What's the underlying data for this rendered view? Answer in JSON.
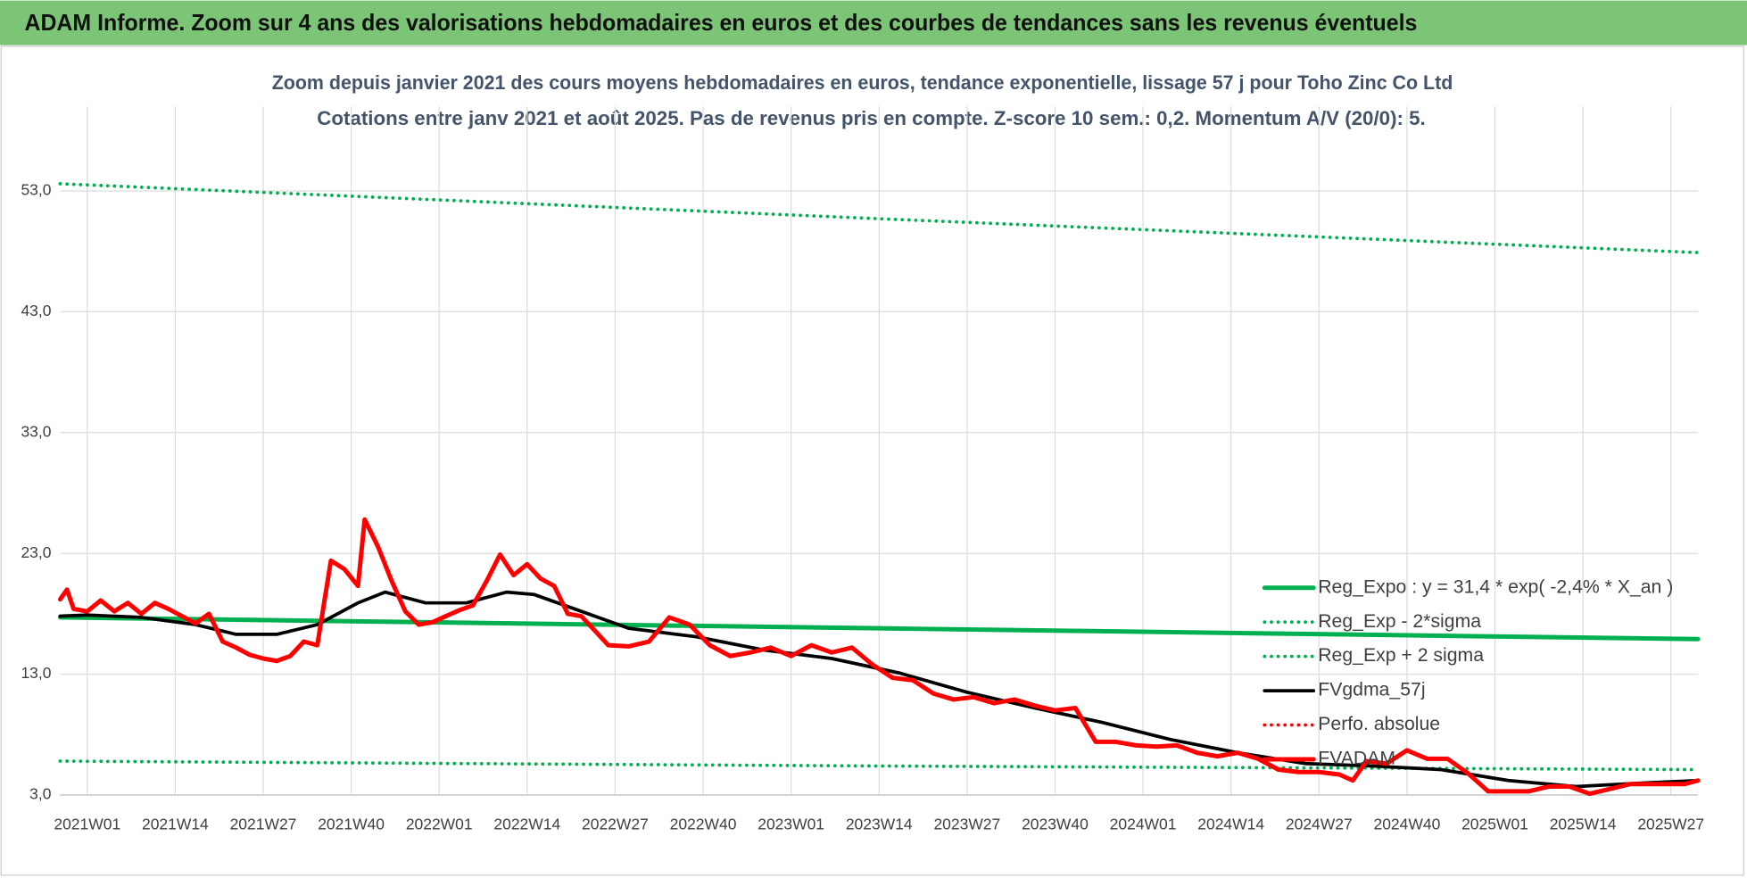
{
  "header": {
    "title": "ADAM Informe. Zoom sur 4 ans des valorisations hebdomadaires en euros et des courbes de tendances sans les revenus éventuels"
  },
  "chart_data": {
    "type": "line",
    "title": "Zoom depuis janvier 2021 des cours moyens hebdomadaires en euros, tendance exponentielle, lissage 57 j pour Toho Zinc Co Ltd",
    "subtitle": "Cotations entre janv 2021 et août 2025.  Pas de revenus pris en compte. Z-score 10 sem.: 0,2. Momentum A/V (20/0): 5.",
    "xlim": [
      -4,
      238
    ],
    "xticks": [
      {
        "value": 0,
        "label": "2021W01"
      },
      {
        "value": 13,
        "label": "2021W14"
      },
      {
        "value": 26,
        "label": "2021W27"
      },
      {
        "value": 39,
        "label": "2021W40"
      },
      {
        "value": 52,
        "label": "2022W01"
      },
      {
        "value": 65,
        "label": "2022W14"
      },
      {
        "value": 78,
        "label": "2022W27"
      },
      {
        "value": 91,
        "label": "2022W40"
      },
      {
        "value": 104,
        "label": "2023W01"
      },
      {
        "value": 117,
        "label": "2023W14"
      },
      {
        "value": 130,
        "label": "2023W27"
      },
      {
        "value": 143,
        "label": "2023W40"
      },
      {
        "value": 156,
        "label": "2024W01"
      },
      {
        "value": 169,
        "label": "2024W14"
      },
      {
        "value": 182,
        "label": "2024W27"
      },
      {
        "value": 195,
        "label": "2024W40"
      },
      {
        "value": 208,
        "label": "2025W01"
      },
      {
        "value": 221,
        "label": "2025W14"
      },
      {
        "value": 234,
        "label": "2025W27"
      }
    ],
    "ylim": [
      3,
      60
    ],
    "yticks": [
      {
        "value": 3,
        "label": "3,0"
      },
      {
        "value": 13,
        "label": "13,0"
      },
      {
        "value": 23,
        "label": "23,0"
      },
      {
        "value": 33,
        "label": "33,0"
      },
      {
        "value": 43,
        "label": "43,0"
      },
      {
        "value": 53,
        "label": "53,0"
      }
    ],
    "grid": true,
    "legend": "right",
    "series": [
      {
        "name": "Reg_Expo : y = 31,4 * exp( -2,4% *  X_an )",
        "color": "#00b050",
        "dash": "solid",
        "width": 4,
        "x": [
          -4,
          117,
          238
        ],
        "values": [
          17.7,
          16.8,
          15.9
        ]
      },
      {
        "name": "Reg_Exp - 2*sigma",
        "color": "#00b050",
        "dash": "dotted",
        "width": 3,
        "x": [
          -4,
          117,
          238
        ],
        "values": [
          5.8,
          5.4,
          5.1
        ]
      },
      {
        "name": "Reg_Exp + 2 sigma",
        "color": "#00b050",
        "dash": "dotted",
        "width": 3,
        "x": [
          -4,
          117,
          238
        ],
        "values": [
          53.6,
          50.7,
          47.9
        ]
      },
      {
        "name": "FVgdma_57j",
        "color": "#000000",
        "dash": "solid",
        "width": 3,
        "x": [
          -4,
          0,
          8,
          16,
          22,
          28,
          34,
          40,
          44,
          50,
          56,
          62,
          66,
          72,
          80,
          90,
          100,
          110,
          120,
          130,
          140,
          150,
          160,
          170,
          180,
          190,
          200,
          210,
          220,
          230,
          238
        ],
        "values": [
          17.8,
          17.9,
          17.7,
          17.1,
          16.3,
          16.3,
          17.1,
          18.9,
          19.8,
          18.9,
          18.9,
          19.8,
          19.6,
          18.4,
          16.8,
          16.1,
          15.0,
          14.3,
          13.1,
          11.5,
          10.2,
          9.0,
          7.6,
          6.5,
          5.6,
          5.4,
          5.1,
          4.2,
          3.7,
          4.0,
          4.2
        ]
      },
      {
        "name": "Perfo. absolue",
        "color": "#ff0000",
        "dash": "dotted",
        "width": 3,
        "x": [],
        "values": []
      },
      {
        "name": "FVADAM",
        "color": "#ff0000",
        "dash": "solid",
        "width": 4,
        "x": [
          -4,
          -3,
          -2,
          0,
          2,
          4,
          6,
          8,
          10,
          12,
          14,
          16,
          18,
          20,
          22,
          24,
          26,
          28,
          30,
          32,
          34,
          36,
          38,
          40,
          41,
          43,
          45,
          47,
          49,
          51,
          53,
          55,
          57,
          59,
          61,
          63,
          65,
          67,
          69,
          71,
          73,
          75,
          77,
          80,
          83,
          86,
          89,
          92,
          95,
          98,
          101,
          104,
          107,
          110,
          113,
          116,
          119,
          122,
          125,
          128,
          131,
          134,
          137,
          140,
          143,
          146,
          149,
          152,
          155,
          158,
          161,
          164,
          167,
          170,
          173,
          176,
          179,
          182,
          185,
          187,
          189,
          192,
          195,
          198,
          201,
          204,
          207,
          210,
          213,
          216,
          219,
          222,
          225,
          228,
          231,
          234,
          236,
          238
        ],
        "values": [
          19.2,
          20.0,
          18.4,
          18.2,
          19.1,
          18.2,
          18.9,
          18.0,
          18.9,
          18.4,
          17.8,
          17.2,
          18.0,
          15.7,
          15.2,
          14.6,
          14.3,
          14.1,
          14.5,
          15.7,
          15.4,
          22.4,
          21.7,
          20.3,
          25.8,
          23.5,
          20.7,
          18.2,
          17.1,
          17.3,
          17.8,
          18.3,
          18.7,
          20.7,
          22.9,
          21.2,
          22.1,
          20.9,
          20.3,
          18.0,
          17.8,
          16.6,
          15.4,
          15.3,
          15.7,
          17.7,
          17.1,
          15.4,
          14.5,
          14.8,
          15.2,
          14.5,
          15.4,
          14.8,
          15.2,
          13.8,
          12.7,
          12.5,
          11.4,
          10.9,
          11.1,
          10.6,
          10.9,
          10.4,
          10.0,
          10.2,
          7.4,
          7.4,
          7.1,
          7.0,
          7.1,
          6.5,
          6.2,
          6.5,
          6.0,
          5.1,
          4.9,
          4.9,
          4.7,
          4.2,
          5.8,
          5.6,
          6.7,
          6.0,
          6.0,
          4.8,
          3.3,
          3.3,
          3.3,
          3.7,
          3.7,
          3.1,
          3.5,
          3.9,
          3.9,
          3.9,
          3.9,
          4.2
        ]
      }
    ]
  }
}
